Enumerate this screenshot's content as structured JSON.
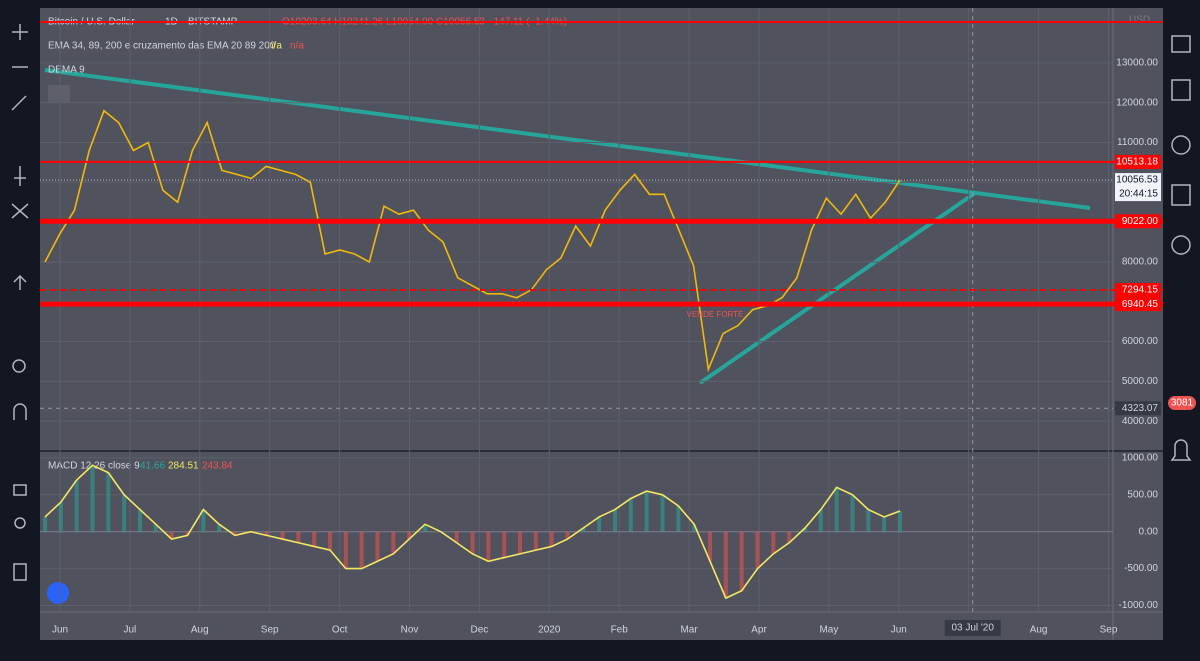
{
  "header": {
    "symbol": "Bitcoin / U.S. Dollar",
    "interval": "1D",
    "exchange": "BITSTAMP",
    "ohlc": "O10203.64 H10241.26 L10054.00 C10056.53 −147.11 (−1.44%)",
    "currency": "USD",
    "ema_legend": "EMA 34, 89, 200 e cruzamento das EMA 20 89 200",
    "ema_values": [
      "n/a",
      "n/a"
    ],
    "dema_legend": "DEMA 9"
  },
  "price_pane": {
    "ylim": [
      3275,
      14330
    ],
    "yticks": [
      {
        "value": 4000,
        "label": "4000.00"
      },
      {
        "value": 5000,
        "label": "5000.00"
      },
      {
        "value": 6000,
        "label": "6000.00"
      },
      {
        "value": 7000,
        "label": "7000.00"
      },
      {
        "value": 8000,
        "label": "8000.00"
      },
      {
        "value": 9000,
        "label": "9000.00"
      },
      {
        "value": 10000,
        "label": "10000.00"
      },
      {
        "value": 11000,
        "label": "11000.00"
      },
      {
        "value": 12000,
        "label": "12000.00"
      },
      {
        "value": 13000,
        "label": "13000.00"
      }
    ],
    "close": [
      8000,
      8700,
      9300,
      10800,
      11800,
      11500,
      10800,
      11000,
      9800,
      9500,
      10800,
      11500,
      10300,
      10200,
      10100,
      10400,
      10300,
      10200,
      10000,
      8200,
      8300,
      8200,
      8000,
      9400,
      9200,
      9300,
      8800,
      8500,
      7600,
      7400,
      7200,
      7200,
      7100,
      7300,
      7800,
      8100,
      8900,
      8400,
      9300,
      9800,
      10200,
      9700,
      9700,
      8800,
      7900,
      5300,
      6200,
      6400,
      6800,
      6900,
      7100,
      7600,
      8800,
      9600,
      9200,
      9700,
      9100,
      9500,
      10056.53
    ],
    "color": "#f0b90b",
    "levels": [
      {
        "value": 14030,
        "style": "solid"
      },
      {
        "value": 10513.18,
        "label": "10513.18",
        "style": "solid"
      },
      {
        "value": 9022.0,
        "label": "9022.00",
        "style": "thick"
      },
      {
        "value": 7294.15,
        "label": "7294.15",
        "style": "dashed"
      },
      {
        "value": 6940.45,
        "label": "6940.45",
        "style": "thick"
      }
    ],
    "last_price": {
      "value": 10056.53,
      "label": "10056.53"
    },
    "countdown": "20:44:15",
    "crosshair": {
      "value": 4323.07,
      "label": "4323.07"
    },
    "annotation": "VENDE FORTE"
  },
  "macd_pane": {
    "title": "MACD 12 26 close 9",
    "readouts": [
      "41.66",
      "284.51",
      "243.84"
    ],
    "ylim": [
      -1088,
      1080
    ],
    "yticks": [
      {
        "value": -1000,
        "label": "-1000.00"
      },
      {
        "value": -500,
        "label": "-500.00"
      },
      {
        "value": 0,
        "label": "0.00"
      },
      {
        "value": 500,
        "label": "500.00"
      },
      {
        "value": 1000,
        "label": "1000.00"
      }
    ],
    "macd": [
      200,
      400,
      700,
      900,
      800,
      500,
      300,
      100,
      -100,
      -50,
      300,
      100,
      -50,
      0,
      -50,
      -100,
      -150,
      -200,
      -250,
      -500,
      -500,
      -400,
      -300,
      -100,
      100,
      0,
      -150,
      -300,
      -400,
      -350,
      -300,
      -250,
      -200,
      -100,
      50,
      200,
      300,
      450,
      550,
      500,
      350,
      100,
      -400,
      -900,
      -800,
      -500,
      -300,
      -150,
      50,
      300,
      600,
      500,
      300,
      200,
      280
    ],
    "color": "#f5e663"
  },
  "time_axis": {
    "labels": [
      "Jun",
      "Jul",
      "Aug",
      "Sep",
      "Oct",
      "Nov",
      "Dec",
      "2020",
      "Feb",
      "Mar",
      "Apr",
      "May",
      "Jun",
      null,
      "Aug",
      "Sep"
    ],
    "cursor": "03 Jul '20"
  },
  "badge": "3081"
}
